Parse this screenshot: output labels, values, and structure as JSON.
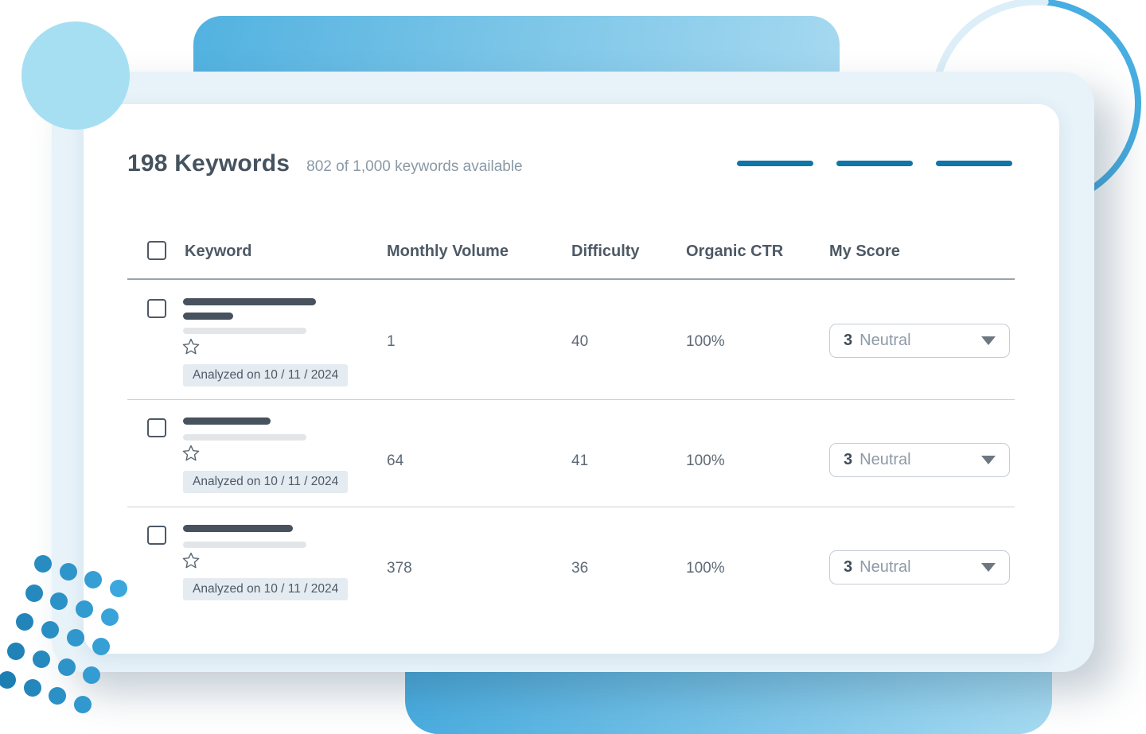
{
  "header": {
    "title": "198 Keywords",
    "subtitle": "802 of 1,000 keywords available"
  },
  "columns": {
    "keyword": "Keyword",
    "monthly_volume": "Monthly Volume",
    "difficulty": "Difficulty",
    "organic_ctr": "Organic CTR",
    "my_score": "My Score"
  },
  "rows": [
    {
      "monthly_volume": "1",
      "difficulty": "40",
      "organic_ctr": "100%",
      "score_value": "3",
      "score_label": "Neutral",
      "analyzed_badge": "Analyzed on 10 / 11 / 2024",
      "redacted_title_bar_1": 167,
      "redacted_title_bar_2": 63,
      "redacted_subtitle_bar": 155
    },
    {
      "monthly_volume": "64",
      "difficulty": "41",
      "organic_ctr": "100%",
      "score_value": "3",
      "score_label": "Neutral",
      "analyzed_badge": "Analyzed on 10 / 11 / 2024",
      "redacted_title_bar_1": 110,
      "redacted_subtitle_bar": 155
    },
    {
      "monthly_volume": "378",
      "difficulty": "36",
      "organic_ctr": "100%",
      "score_value": "3",
      "score_label": "Neutral",
      "analyzed_badge": "Analyzed on 10 / 11 / 2024",
      "redacted_title_bar_1": 138,
      "redacted_subtitle_bar": 155
    }
  ],
  "colors": {
    "accent_blue": "#0e76a8",
    "dark_slate": "#47525e",
    "badge_bg": "#e4ebf1",
    "back_card": "#e7f2f9",
    "circle_blue": "#a6dff2",
    "ring_blue": "#48ade0",
    "dot_dark": "#1d7eb2",
    "dot_light": "#3ba7dd"
  }
}
